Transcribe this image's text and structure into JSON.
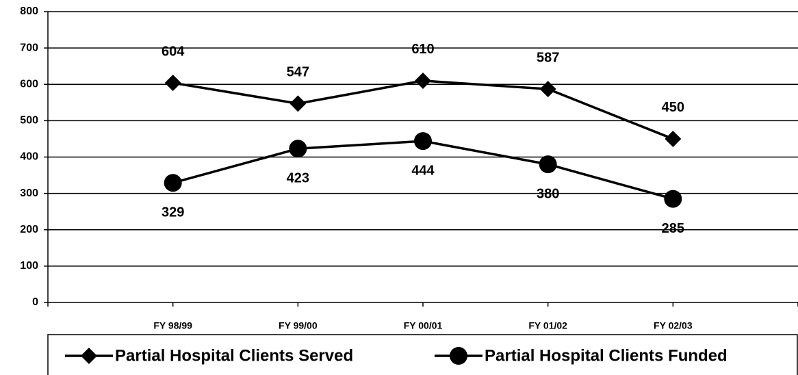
{
  "chart_data": {
    "type": "line",
    "categories": [
      "FY 98/99",
      "FY 99/00",
      "FY 00/01",
      "FY 01/02",
      "FY 02/03"
    ],
    "series": [
      {
        "name": "Partial Hospital Clients Served",
        "color": "#000000",
        "marker": "diamond",
        "values": [
          604,
          547,
          610,
          587,
          450
        ]
      },
      {
        "name": "Partial Hospital Clients Funded",
        "color": "#000000",
        "marker": "circle",
        "values": [
          329,
          423,
          444,
          380,
          285
        ]
      }
    ],
    "ylim": [
      0,
      800
    ],
    "yticks": [
      0,
      100,
      200,
      300,
      400,
      500,
      600,
      700,
      800
    ],
    "grid": true,
    "legend": "bottom"
  }
}
